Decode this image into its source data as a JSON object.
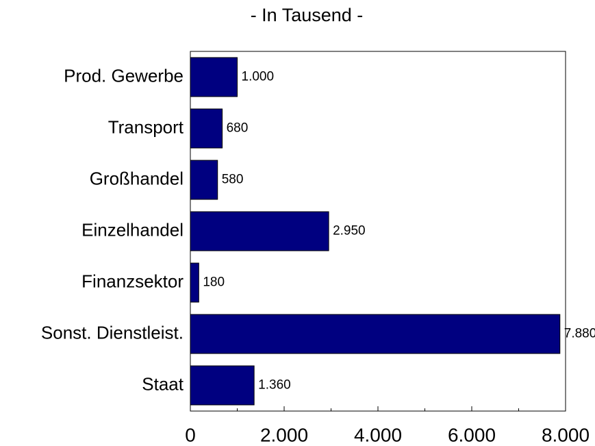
{
  "chart_data": {
    "type": "barh",
    "title": "- In Tausend -",
    "categories": [
      "Prod. Gewerbe",
      "Transport",
      "Großhandel",
      "Einzelhandel",
      "Finanzsektor",
      "Sonst. Dienstleist.",
      "Staat"
    ],
    "values": [
      1000,
      680,
      580,
      2950,
      180,
      7880,
      1360
    ],
    "value_labels": [
      "1.000",
      "680",
      "580",
      "2.950",
      "180",
      "7.880",
      "1.360"
    ],
    "color": "#000080",
    "xlim": [
      0,
      8000
    ],
    "xticks": [
      0,
      {
        "value": 2000,
        "label": "2.000"
      },
      {
        "value": 4000,
        "label": "4.000"
      },
      {
        "value": 6000,
        "label": "6.000"
      },
      {
        "value": 8000,
        "label": "8.000"
      }
    ],
    "xminorticks": [
      1000,
      3000,
      5000,
      7000
    ],
    "grid": false
  }
}
